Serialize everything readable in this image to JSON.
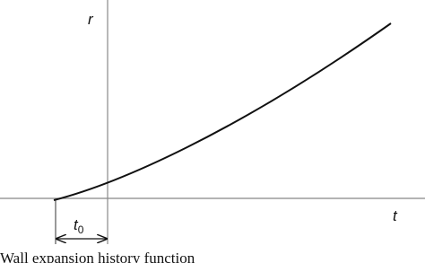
{
  "labels": {
    "y_axis": "r",
    "x_axis": "t",
    "interval": "t",
    "interval_subscript": "0"
  },
  "caption": "Wall expansion history function"
}
